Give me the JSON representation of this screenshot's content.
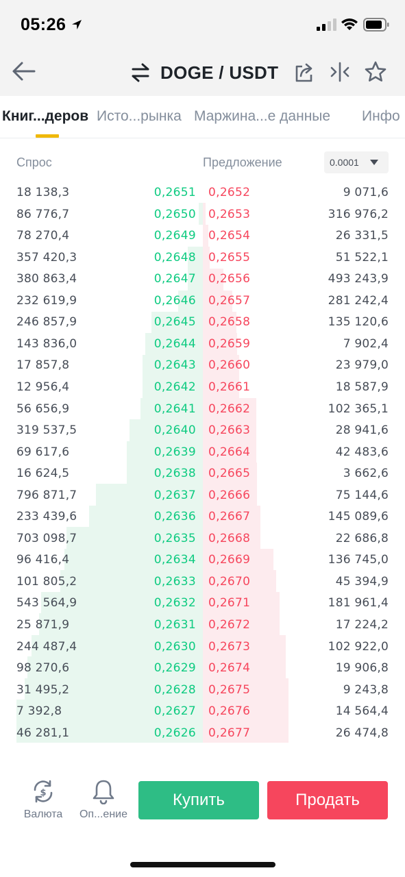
{
  "status_bar": {
    "time": "05:26"
  },
  "header": {
    "pair": "DOGE / USDT"
  },
  "tabs": [
    {
      "label": "Книг...деров",
      "active": true
    },
    {
      "label": "Исто...рынка",
      "active": false
    },
    {
      "label": "Маржина...е данные",
      "active": false
    },
    {
      "label": "Инфо",
      "active": false
    }
  ],
  "order_book": {
    "bid_label": "Спрос",
    "ask_label": "Предложение",
    "precision": "0.0001",
    "colors": {
      "bid": "#0ecb81",
      "ask": "#f6465d",
      "bid_depth": "#e8f7ef",
      "ask_depth": "#fdebee"
    },
    "rows": [
      {
        "bid_qty": "18 138,3",
        "bid_price": "0,2651",
        "ask_price": "0,2652",
        "ask_qty": "9 071,6"
      },
      {
        "bid_qty": "86 776,7",
        "bid_price": "0,2650",
        "ask_price": "0,2653",
        "ask_qty": "316 976,2"
      },
      {
        "bid_qty": "78 270,4",
        "bid_price": "0,2649",
        "ask_price": "0,2654",
        "ask_qty": "26 331,5"
      },
      {
        "bid_qty": "357 420,3",
        "bid_price": "0,2648",
        "ask_price": "0,2655",
        "ask_qty": "51 522,1"
      },
      {
        "bid_qty": "380 863,4",
        "bid_price": "0,2647",
        "ask_price": "0,2656",
        "ask_qty": "493 243,9"
      },
      {
        "bid_qty": "232 619,9",
        "bid_price": "0,2646",
        "ask_price": "0,2657",
        "ask_qty": "281 242,4"
      },
      {
        "bid_qty": "246 857,9",
        "bid_price": "0,2645",
        "ask_price": "0,2658",
        "ask_qty": "135 120,6"
      },
      {
        "bid_qty": "143 836,0",
        "bid_price": "0,2644",
        "ask_price": "0,2659",
        "ask_qty": "7 902,4"
      },
      {
        "bid_qty": "17 857,8",
        "bid_price": "0,2643",
        "ask_price": "0,2660",
        "ask_qty": "23 979,0"
      },
      {
        "bid_qty": "12 956,4",
        "bid_price": "0,2642",
        "ask_price": "0,2661",
        "ask_qty": "18 587,9"
      },
      {
        "bid_qty": "56 656,9",
        "bid_price": "0,2641",
        "ask_price": "0,2662",
        "ask_qty": "102 365,1"
      },
      {
        "bid_qty": "319 537,5",
        "bid_price": "0,2640",
        "ask_price": "0,2663",
        "ask_qty": "28 941,6"
      },
      {
        "bid_qty": "69 617,6",
        "bid_price": "0,2639",
        "ask_price": "0,2664",
        "ask_qty": "42 483,6"
      },
      {
        "bid_qty": "16 624,5",
        "bid_price": "0,2638",
        "ask_price": "0,2665",
        "ask_qty": "3 662,6"
      },
      {
        "bid_qty": "796 871,7",
        "bid_price": "0,2637",
        "ask_price": "0,2666",
        "ask_qty": "75 144,6"
      },
      {
        "bid_qty": "233 439,6",
        "bid_price": "0,2636",
        "ask_price": "0,2667",
        "ask_qty": "145 089,6"
      },
      {
        "bid_qty": "703 098,7",
        "bid_price": "0,2635",
        "ask_price": "0,2668",
        "ask_qty": "22 686,8"
      },
      {
        "bid_qty": "96 416,4",
        "bid_price": "0,2634",
        "ask_price": "0,2669",
        "ask_qty": "136 745,0"
      },
      {
        "bid_qty": "101 805,2",
        "bid_price": "0,2633",
        "ask_price": "0,2670",
        "ask_qty": "45 394,9"
      },
      {
        "bid_qty": "543 564,9",
        "bid_price": "0,2632",
        "ask_price": "0,2671",
        "ask_qty": "181 961,4"
      },
      {
        "bid_qty": "25 871,9",
        "bid_price": "0,2631",
        "ask_price": "0,2672",
        "ask_qty": "17 224,2"
      },
      {
        "bid_qty": "244 487,4",
        "bid_price": "0,2630",
        "ask_price": "0,2673",
        "ask_qty": "102 922,0"
      },
      {
        "bid_qty": "98 270,6",
        "bid_price": "0,2629",
        "ask_price": "0,2674",
        "ask_qty": "19 906,8"
      },
      {
        "bid_qty": "31 495,2",
        "bid_price": "0,2628",
        "ask_price": "0,2675",
        "ask_qty": "9 243,8"
      },
      {
        "bid_qty": "7 392,8",
        "bid_price": "0,2627",
        "ask_price": "0,2676",
        "ask_qty": "14 564,4"
      },
      {
        "bid_qty": "46 281,1",
        "bid_price": "0,2626",
        "ask_price": "0,2677",
        "ask_qty": "26 474,8"
      }
    ]
  },
  "bottom_bar": {
    "currency_label": "Валюта",
    "currency_icon": "currency-exchange-icon",
    "alerts_label": "Оп...ение",
    "alerts_icon": "bell-icon",
    "buy_label": "Купить",
    "sell_label": "Продать",
    "buy_color": "#2ebd85",
    "sell_color": "#f6465d"
  }
}
